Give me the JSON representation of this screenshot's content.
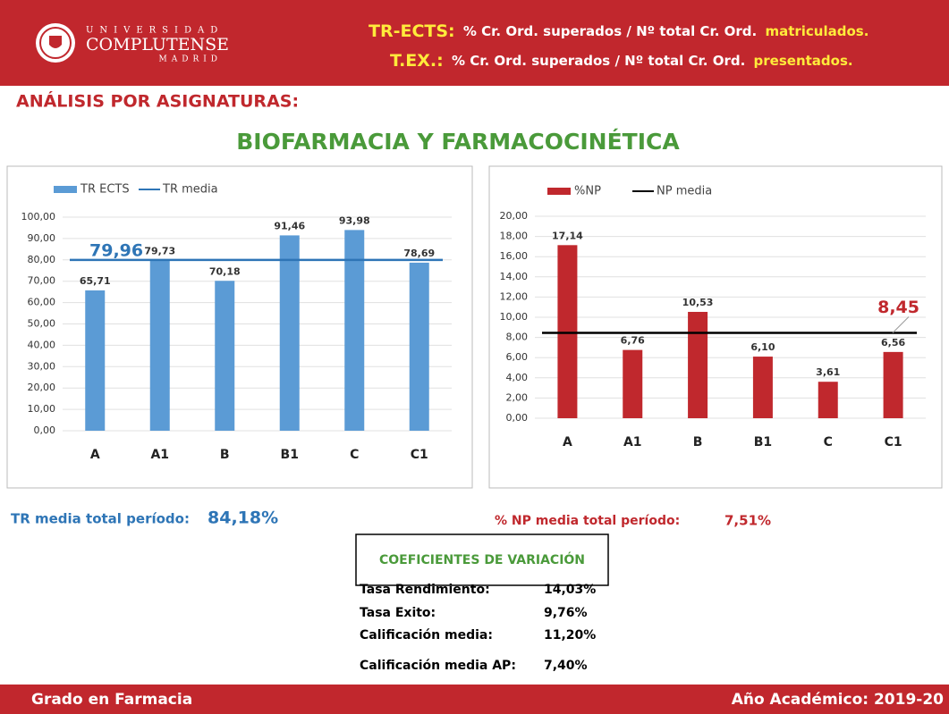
{
  "header": {
    "logo": {
      "line1": "UNIVERSIDAD",
      "line2": "COMPLUTENSE",
      "line3": "MADRID"
    },
    "definitions": [
      {
        "term": "TR-ECTS:",
        "text": "% Cr. Ord. superados / Nº total Cr. Ord.",
        "highlight": "matriculados."
      },
      {
        "term": "T.EX.:",
        "text": "% Cr. Ord. superados / Nº total Cr. Ord.",
        "highlight": "presentados."
      }
    ]
  },
  "section_title": "ANÁLISIS POR ASIGNATURAS:",
  "subject_title": "BIOFARMACIA Y FARMACOCINÉTICA",
  "chart_data": [
    {
      "type": "bar",
      "categories": [
        "A",
        "A1",
        "B",
        "B1",
        "C",
        "C1"
      ],
      "series": [
        {
          "name": "TR ECTS",
          "color": "#5b9bd5",
          "values": [
            65.71,
            79.73,
            70.18,
            91.46,
            93.98,
            78.69
          ],
          "value_labels": [
            "65,71",
            "79,73",
            "70,18",
            "91,46",
            "93,98",
            "78,69"
          ]
        }
      ],
      "reference_line": {
        "name": "TR media",
        "value": 79.96,
        "label": "79,96",
        "color": "#2e75b6"
      },
      "ylim": [
        0,
        100
      ],
      "yticks": [
        {
          "value": 0,
          "label": "0,00"
        },
        {
          "value": 10,
          "label": "10,00"
        },
        {
          "value": 20,
          "label": "20,00"
        },
        {
          "value": 30,
          "label": "30,00"
        },
        {
          "value": 40,
          "label": "40,00"
        },
        {
          "value": 50,
          "label": "50,00"
        },
        {
          "value": 60,
          "label": "60,00"
        },
        {
          "value": 70,
          "label": "70,00"
        },
        {
          "value": 80,
          "label": "80,00"
        },
        {
          "value": 90,
          "label": "90,00"
        },
        {
          "value": 100,
          "label": "100,00"
        }
      ],
      "grid": true
    },
    {
      "type": "bar",
      "categories": [
        "A",
        "A1",
        "B",
        "B1",
        "C",
        "C1"
      ],
      "series": [
        {
          "name": "%NP",
          "color": "#c0282d",
          "values": [
            17.14,
            6.76,
            10.53,
            6.1,
            3.61,
            6.56
          ],
          "value_labels": [
            "17,14",
            "6,76",
            "10,53",
            "6,10",
            "3,61",
            "6,56"
          ]
        }
      ],
      "reference_line": {
        "name": "NP media",
        "value": 8.45,
        "label": "8,45",
        "color": "#000000",
        "label_color": "#c0282d"
      },
      "ylim": [
        0,
        20
      ],
      "yticks": [
        {
          "value": 0,
          "label": "0,00"
        },
        {
          "value": 2,
          "label": "2,00"
        },
        {
          "value": 4,
          "label": "4,00"
        },
        {
          "value": 6,
          "label": "6,00"
        },
        {
          "value": 8,
          "label": "8,00"
        },
        {
          "value": 10,
          "label": "10,00"
        },
        {
          "value": 12,
          "label": "12,00"
        },
        {
          "value": 14,
          "label": "14,00"
        },
        {
          "value": 16,
          "label": "16,00"
        },
        {
          "value": 18,
          "label": "18,00"
        },
        {
          "value": 20,
          "label": "20,00"
        }
      ],
      "grid": true
    }
  ],
  "summary": [
    {
      "label": "TR media total período:",
      "value": "84,18%"
    },
    {
      "label": "% NP media total período:",
      "value": "7,51%"
    }
  ],
  "coefficients": {
    "title": "COEFICIENTES DE VARIACIÓN",
    "rows": [
      [
        "Tasa Rendimiento:",
        "14,03%"
      ],
      [
        "Tasa Exito:",
        "9,76%"
      ],
      [
        "Calificación media:",
        "11,20%"
      ],
      [
        "Calificación media AP:",
        "7,40%"
      ]
    ]
  },
  "footer": {
    "left": "Grado en Farmacia",
    "right": "Año Académico: 2019-20"
  }
}
